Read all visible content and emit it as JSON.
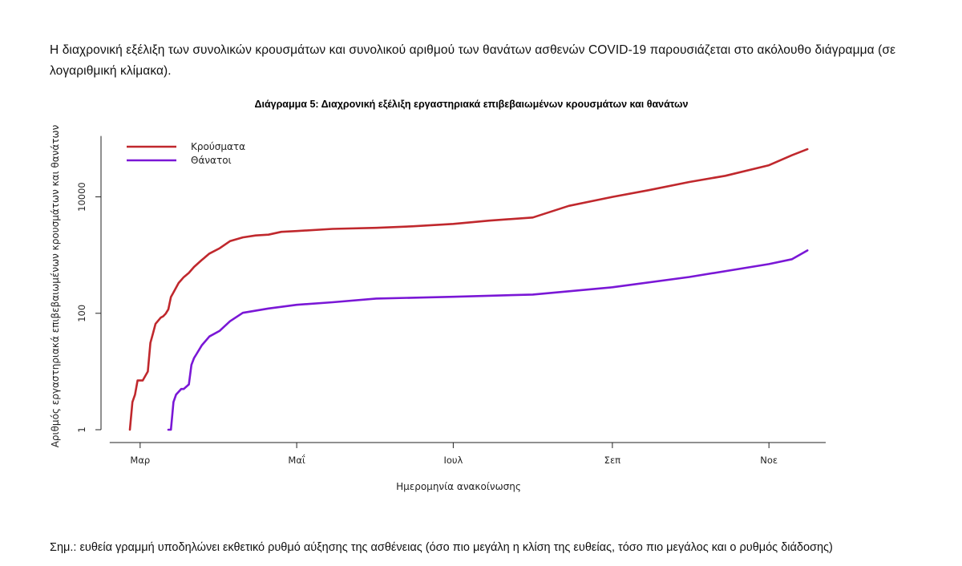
{
  "intro_text": "Η διαχρονική εξέλιξη των συνολικών κρουσμάτων και συνολικού αριθμού των θανάτων ασθενών COVID-19 παρουσιάζεται στο ακόλουθο διάγραμμα (σε λογαριθμική κλίμακα).",
  "note_text": "Σημ.: ευθεία γραμμή υποδηλώνει εκθετικό ρυθμό αύξησης της ασθένειας (όσο πιο μεγάλη η κλίση της ευθείας, τόσο πιο μεγάλος και ο ρυθμός διάδοσης)",
  "chart_data": {
    "type": "line",
    "title": "Διάγραμμα 5: Διαχρονική εξέλιξη εργαστηριακά επιβεβαιωμένων κρουσμάτων και θανάτων",
    "xlabel": "Ημερομηνία ανακοίνωσης",
    "ylabel": "Αριθμός εργαστηριακά επιβεβαιωμένων κρουσμάτων και θανάτων",
    "y_scale": "log",
    "ylim": [
      1,
      80000
    ],
    "y_ticks": [
      1,
      100,
      10000
    ],
    "y_tick_labels": [
      "1",
      "100",
      "10000"
    ],
    "x_ticks": [
      "2020-03-01",
      "2020-05-01",
      "2020-07-01",
      "2020-09-01",
      "2020-11-01"
    ],
    "x_tick_labels": [
      "Μαρ",
      "Μαΐ",
      "Ιουλ",
      "Σεπ",
      "Νοε"
    ],
    "xlim": [
      "2020-02-26",
      "2020-11-20"
    ],
    "legend_position": "top-left",
    "grid": false,
    "series": [
      {
        "name": "Κρούσματα",
        "color": "#c0282d",
        "points": [
          [
            "2020-02-26",
            1
          ],
          [
            "2020-02-27",
            3
          ],
          [
            "2020-02-28",
            4
          ],
          [
            "2020-02-29",
            7
          ],
          [
            "2020-03-01",
            7
          ],
          [
            "2020-03-02",
            7
          ],
          [
            "2020-03-04",
            10
          ],
          [
            "2020-03-05",
            31
          ],
          [
            "2020-03-06",
            45
          ],
          [
            "2020-03-07",
            66
          ],
          [
            "2020-03-09",
            84
          ],
          [
            "2020-03-10",
            89
          ],
          [
            "2020-03-11",
            99
          ],
          [
            "2020-03-12",
            117
          ],
          [
            "2020-03-13",
            190
          ],
          [
            "2020-03-14",
            228
          ],
          [
            "2020-03-16",
            331
          ],
          [
            "2020-03-18",
            418
          ],
          [
            "2020-03-20",
            495
          ],
          [
            "2020-03-22",
            624
          ],
          [
            "2020-03-25",
            821
          ],
          [
            "2020-03-28",
            1061
          ],
          [
            "2020-04-01",
            1314
          ],
          [
            "2020-04-05",
            1735
          ],
          [
            "2020-04-10",
            2011
          ],
          [
            "2020-04-15",
            2170
          ],
          [
            "2020-04-20",
            2245
          ],
          [
            "2020-04-25",
            2506
          ],
          [
            "2020-05-01",
            2591
          ],
          [
            "2020-05-15",
            2819
          ],
          [
            "2020-06-01",
            2937
          ],
          [
            "2020-06-15",
            3121
          ],
          [
            "2020-07-01",
            3432
          ],
          [
            "2020-07-15",
            3910
          ],
          [
            "2020-08-01",
            4427
          ],
          [
            "2020-08-15",
            7000
          ],
          [
            "2020-09-01",
            10000
          ],
          [
            "2020-09-15",
            13000
          ],
          [
            "2020-10-01",
            18000
          ],
          [
            "2020-10-15",
            23000
          ],
          [
            "2020-11-01",
            35000
          ],
          [
            "2020-11-10",
            52000
          ],
          [
            "2020-11-16",
            66000
          ]
        ]
      },
      {
        "name": "Θάνατοι",
        "color": "#7a17d6",
        "points": [
          [
            "2020-03-12",
            1
          ],
          [
            "2020-03-13",
            1
          ],
          [
            "2020-03-14",
            3
          ],
          [
            "2020-03-15",
            4
          ],
          [
            "2020-03-17",
            5
          ],
          [
            "2020-03-18",
            5
          ],
          [
            "2020-03-20",
            6
          ],
          [
            "2020-03-21",
            13
          ],
          [
            "2020-03-22",
            17
          ],
          [
            "2020-03-23",
            20
          ],
          [
            "2020-03-25",
            28
          ],
          [
            "2020-03-28",
            40
          ],
          [
            "2020-04-01",
            50
          ],
          [
            "2020-04-05",
            73
          ],
          [
            "2020-04-10",
            102
          ],
          [
            "2020-04-20",
            121
          ],
          [
            "2020-05-01",
            140
          ],
          [
            "2020-05-15",
            155
          ],
          [
            "2020-06-01",
            179
          ],
          [
            "2020-07-01",
            192
          ],
          [
            "2020-08-01",
            210
          ],
          [
            "2020-09-01",
            280
          ],
          [
            "2020-10-01",
            420
          ],
          [
            "2020-11-01",
            700
          ],
          [
            "2020-11-10",
            850
          ],
          [
            "2020-11-16",
            1200
          ]
        ]
      }
    ]
  }
}
